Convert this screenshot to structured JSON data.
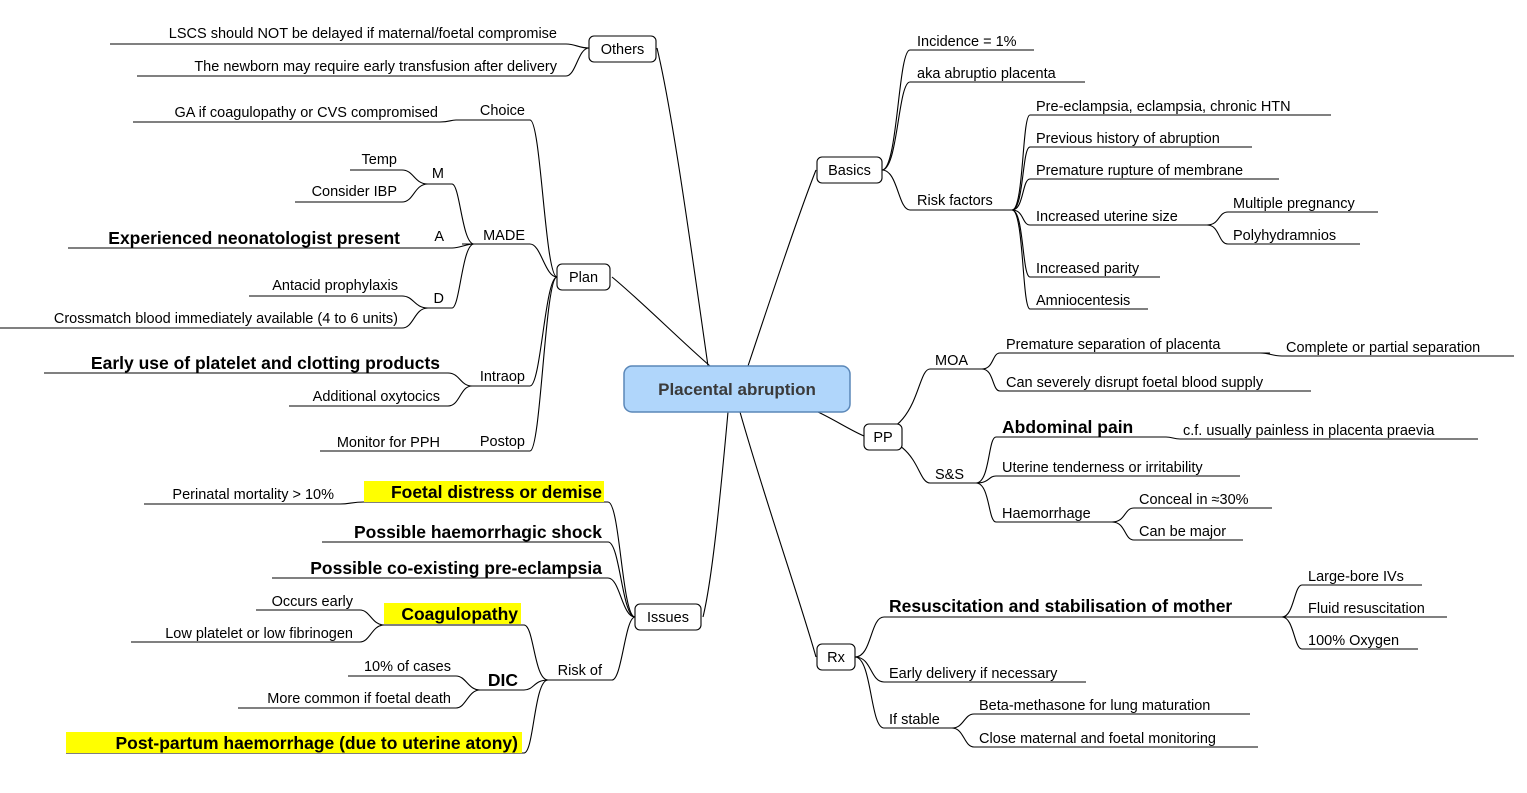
{
  "title": "Placental abruption",
  "colors": {
    "center_fill": "#b0d6fb",
    "center_border": "#5a87b8",
    "highlight": "#ffff00"
  },
  "branches": {
    "others": {
      "label": "Others",
      "items": [
        "LSCS should NOT be delayed if maternal/foetal compromise",
        "The newborn may require early transfusion after delivery"
      ]
    },
    "plan": {
      "label": "Plan",
      "choice": {
        "label": "Choice",
        "items": [
          "GA if coagulopathy or CVS compromised"
        ]
      },
      "made": {
        "label": "MADE",
        "m": {
          "label": "M",
          "items": [
            "Temp",
            "Consider IBP"
          ]
        },
        "a": {
          "label": "A",
          "items": [
            "Experienced neonatologist present"
          ]
        },
        "d": {
          "label": "D",
          "items": [
            "Antacid prophylaxis",
            "Crossmatch blood immediately available (4 to 6 units)"
          ]
        }
      },
      "intraop": {
        "label": "Intraop",
        "items": [
          "Early use of platelet and clotting products",
          "Additional oxytocics"
        ]
      },
      "postop": {
        "label": "Postop",
        "items": [
          "Monitor for PPH"
        ]
      }
    },
    "issues": {
      "label": "Issues",
      "foetal": {
        "label": "Foetal distress or demise",
        "items": [
          "Perinatal mortality > 10%"
        ]
      },
      "shock": "Possible haemorrhagic shock",
      "preeclampsia": "Possible co-existing pre-eclampsia",
      "risk_of": {
        "label": "Risk of",
        "coagulopathy": {
          "label": "Coagulopathy",
          "items": [
            "Occurs early",
            "Low platelet or low fibrinogen"
          ]
        },
        "dic": {
          "label": "DIC",
          "items": [
            "10% of cases",
            "More common if foetal death"
          ]
        },
        "pph": "Post-partum haemorrhage (due to uterine atony)"
      }
    },
    "basics": {
      "label": "Basics",
      "incidence": "Incidence = 1%",
      "aka": "aka abruptio placenta",
      "risk_factors": {
        "label": "Risk factors",
        "items": [
          "Pre-eclampsia, eclampsia, chronic HTN",
          "Previous history of abruption",
          "Premature rupture of membrane"
        ],
        "uterine_size": {
          "label": "Increased uterine size",
          "items": [
            "Multiple pregnancy",
            "Polyhydramnios"
          ]
        },
        "items_after": [
          "Increased parity",
          "Amniocentesis"
        ]
      }
    },
    "pp": {
      "label": "PP",
      "moa": {
        "label": "MOA",
        "separation": {
          "label": "Premature separation of placenta",
          "items": [
            "Complete or partial separation"
          ]
        },
        "disrupt": "Can severely disrupt foetal blood supply"
      },
      "ss": {
        "label": "S&S",
        "pain": {
          "label": "Abdominal pain",
          "items": [
            "c.f. usually painless in placenta praevia"
          ]
        },
        "tenderness": "Uterine tenderness or irritability",
        "haemorrhage": {
          "label": "Haemorrhage",
          "items": [
            "Conceal in ≈30%",
            "Can be major"
          ]
        }
      }
    },
    "rx": {
      "label": "Rx",
      "resus": {
        "label": "Resuscitation and stabilisation of mother",
        "items": [
          "Large-bore IVs",
          "Fluid resuscitation",
          "100% Oxygen"
        ]
      },
      "early": "Early delivery if necessary",
      "stable": {
        "label": "If stable",
        "items": [
          "Beta-methasone for lung maturation",
          "Close maternal and foetal monitoring"
        ]
      }
    }
  }
}
